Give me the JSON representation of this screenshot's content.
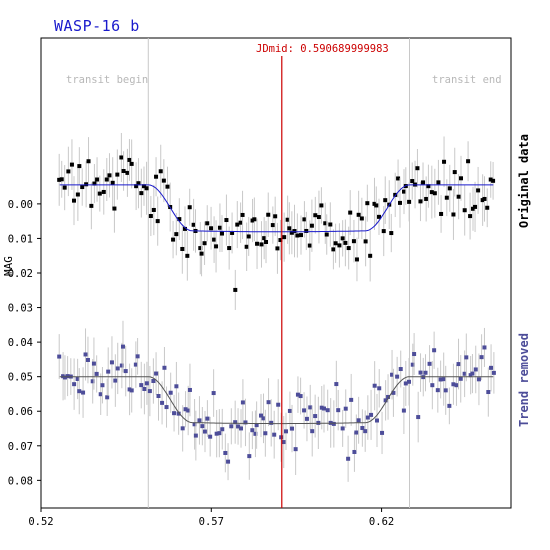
{
  "chart_data": {
    "type": "scatter",
    "title": "WASP-16 b",
    "annotation_jdmid": "JDmid: 0.590689999983",
    "transit_begin_label": "transit begin",
    "transit_end_label": "transit end",
    "ylabel": "MAG",
    "xlim": [
      0.52,
      0.658
    ],
    "ylim": [
      0.088,
      -0.048
    ],
    "x_ticks": [
      0.52,
      0.57,
      0.62
    ],
    "x_tick_labels": [
      "0.52",
      "0.57",
      "0.62"
    ],
    "y_ticks": [
      0.0,
      0.01,
      0.02,
      0.03,
      0.04,
      0.05,
      0.06,
      0.07,
      0.08
    ],
    "y_tick_labels": [
      "0.00",
      "0.01",
      "0.02",
      "0.03",
      "0.04",
      "0.05",
      "0.06",
      "0.07",
      "0.08"
    ],
    "transit_begin_x": 0.5515,
    "transit_end_x": 0.6282,
    "jdmid_x": 0.5907,
    "x_start": 0.5255,
    "x_end": 0.6528,
    "depth": 0.0133,
    "ingress_duration": 0.013,
    "series": [
      {
        "name": "Original data",
        "color": "#000000",
        "curve_color": "#1a1acc",
        "baseline": -0.0055,
        "scatter": 0.0045,
        "seed": 7
      },
      {
        "name": "Trend removed",
        "color": "#4d4d99",
        "curve_color": "#555555",
        "baseline": 0.05,
        "scatter": 0.0045,
        "seed": 23
      }
    ],
    "grid": false
  },
  "colors": {
    "marker_line": "#cc0000",
    "transit_line": "#c8c8c8",
    "error_bar": "#c8c8c8",
    "title": "#1a1acc"
  }
}
